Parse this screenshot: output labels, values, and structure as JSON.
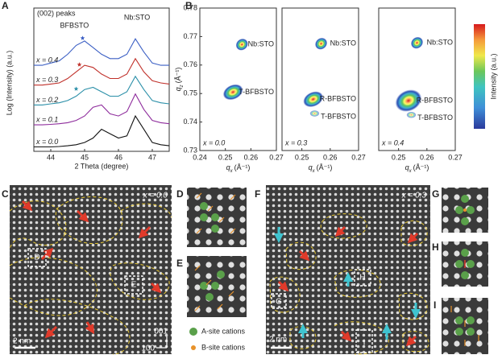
{
  "chart_data": [
    {
      "type": "line",
      "panel": "A",
      "title": "(002) peaks",
      "x_label": "2 Theta (degree)",
      "y_label": "Log (Intensity) (a.u.)",
      "x": [
        43.5,
        43.75,
        44,
        44.25,
        44.5,
        44.75,
        45,
        45.25,
        45.5,
        45.75,
        46,
        46.25,
        46.5,
        46.75,
        47,
        47.25,
        47.5
      ],
      "xlim": [
        43.5,
        47.5
      ],
      "xticks": [
        44,
        45,
        46,
        47
      ],
      "ylim": [
        0,
        6.2
      ],
      "annotations": [
        "BFBSTO",
        "Nb:STO"
      ],
      "series": [
        {
          "name": "x = 0.0",
          "color": "#111111",
          "values": [
            0.2,
            0.2,
            0.2,
            0.22,
            0.25,
            0.3,
            0.4,
            0.6,
            1.0,
            0.8,
            0.6,
            0.7,
            1.6,
            1.0,
            0.4,
            0.3,
            0.25
          ]
        },
        {
          "name": "x = 0.1",
          "color": "#8e2c9c",
          "values": [
            1.2,
            1.2,
            1.22,
            1.25,
            1.3,
            1.4,
            1.6,
            2.0,
            2.1,
            1.7,
            1.6,
            1.8,
            2.6,
            1.9,
            1.4,
            1.3,
            1.25
          ]
        },
        {
          "name": "x = 0.2",
          "color": "#2a8fa8",
          "values": [
            2.1,
            2.1,
            2.15,
            2.2,
            2.3,
            2.5,
            2.8,
            2.9,
            2.7,
            2.5,
            2.5,
            2.7,
            3.4,
            2.8,
            2.3,
            2.2,
            2.15
          ]
        },
        {
          "name": "x = 0.3",
          "color": "#c0302a",
          "values": [
            3.0,
            3.0,
            3.05,
            3.1,
            3.3,
            3.6,
            3.9,
            3.8,
            3.5,
            3.3,
            3.3,
            3.5,
            4.2,
            3.6,
            3.2,
            3.1,
            3.05
          ]
        },
        {
          "name": "x = 0.4",
          "color": "#3b5fc4",
          "values": [
            3.9,
            3.9,
            4.0,
            4.1,
            4.4,
            4.8,
            5.0,
            4.7,
            4.4,
            4.2,
            4.2,
            4.4,
            5.1,
            4.5,
            4.0,
            3.9,
            3.9
          ]
        }
      ]
    },
    {
      "type": "density",
      "panel": "B",
      "annotation": "x = 0.0",
      "colorbar_label": "Intensity (a.u.)",
      "x_label": {
        "base": "q",
        "sub": "x",
        "unit": "(Å⁻¹)"
      },
      "y_label": {
        "base": "q",
        "sub": "z",
        "unit": "(Å⁻¹)"
      },
      "xlim": [
        0.24,
        0.27
      ],
      "xticks": [
        0.24,
        0.25,
        0.26,
        0.27
      ],
      "ylim": [
        0.73,
        0.78
      ],
      "yticks": [
        0.73,
        0.74,
        0.75,
        0.76,
        0.77,
        0.78
      ],
      "spots": [
        {
          "name": "Nb:STO",
          "qx": 0.2565,
          "qz": 0.7672
        },
        {
          "name": "T-BFBSTO",
          "qx": 0.253,
          "qz": 0.7505
        }
      ]
    },
    {
      "type": "density",
      "annotation": "x = 0.3",
      "x_label": {
        "base": "q",
        "sub": "x",
        "unit": "(Å⁻¹)"
      },
      "xlim": [
        0.243,
        0.27
      ],
      "xticks": [
        0.25,
        0.26,
        0.27
      ],
      "ylim": [
        0.73,
        0.78
      ],
      "spots": [
        {
          "name": "Nb:STO",
          "qx": 0.2568,
          "qz": 0.7675
        },
        {
          "name": "R-BFBSTO",
          "qx": 0.254,
          "qz": 0.748
        },
        {
          "name": "T-BFBSTO",
          "qx": 0.2545,
          "qz": 0.743
        }
      ]
    },
    {
      "type": "density",
      "annotation": "x = 0.4",
      "x_label": {
        "base": "q",
        "sub": "x",
        "unit": "(Å⁻¹)"
      },
      "xlim": [
        0.243,
        0.27
      ],
      "xticks": [
        0.25,
        0.26,
        0.27
      ],
      "ylim": [
        0.73,
        0.78
      ],
      "spots": [
        {
          "name": "Nb:STO",
          "qx": 0.2565,
          "qz": 0.7678
        },
        {
          "name": "R-BFBSTO",
          "qx": 0.2535,
          "qz": 0.7475
        },
        {
          "name": "T-BFBSTO",
          "qx": 0.2545,
          "qz": 0.7425
        }
      ]
    }
  ],
  "images": {
    "C": {
      "label": "C",
      "annotation": "x = 0.0",
      "scale_bar": "2 nm",
      "boxes": [
        "D",
        "E"
      ],
      "axes": [
        "001",
        "100"
      ]
    },
    "D": {
      "label": "D"
    },
    "E": {
      "label": "E"
    },
    "F": {
      "label": "F",
      "annotation": "x = 0.3",
      "scale_bar": "2 nm",
      "boxes": [
        "G",
        "H",
        "I"
      ]
    },
    "G": {
      "label": "G"
    },
    "H": {
      "label": "H"
    },
    "I": {
      "label": "I"
    },
    "legend": [
      "A-site cations",
      "B-site cations"
    ]
  }
}
